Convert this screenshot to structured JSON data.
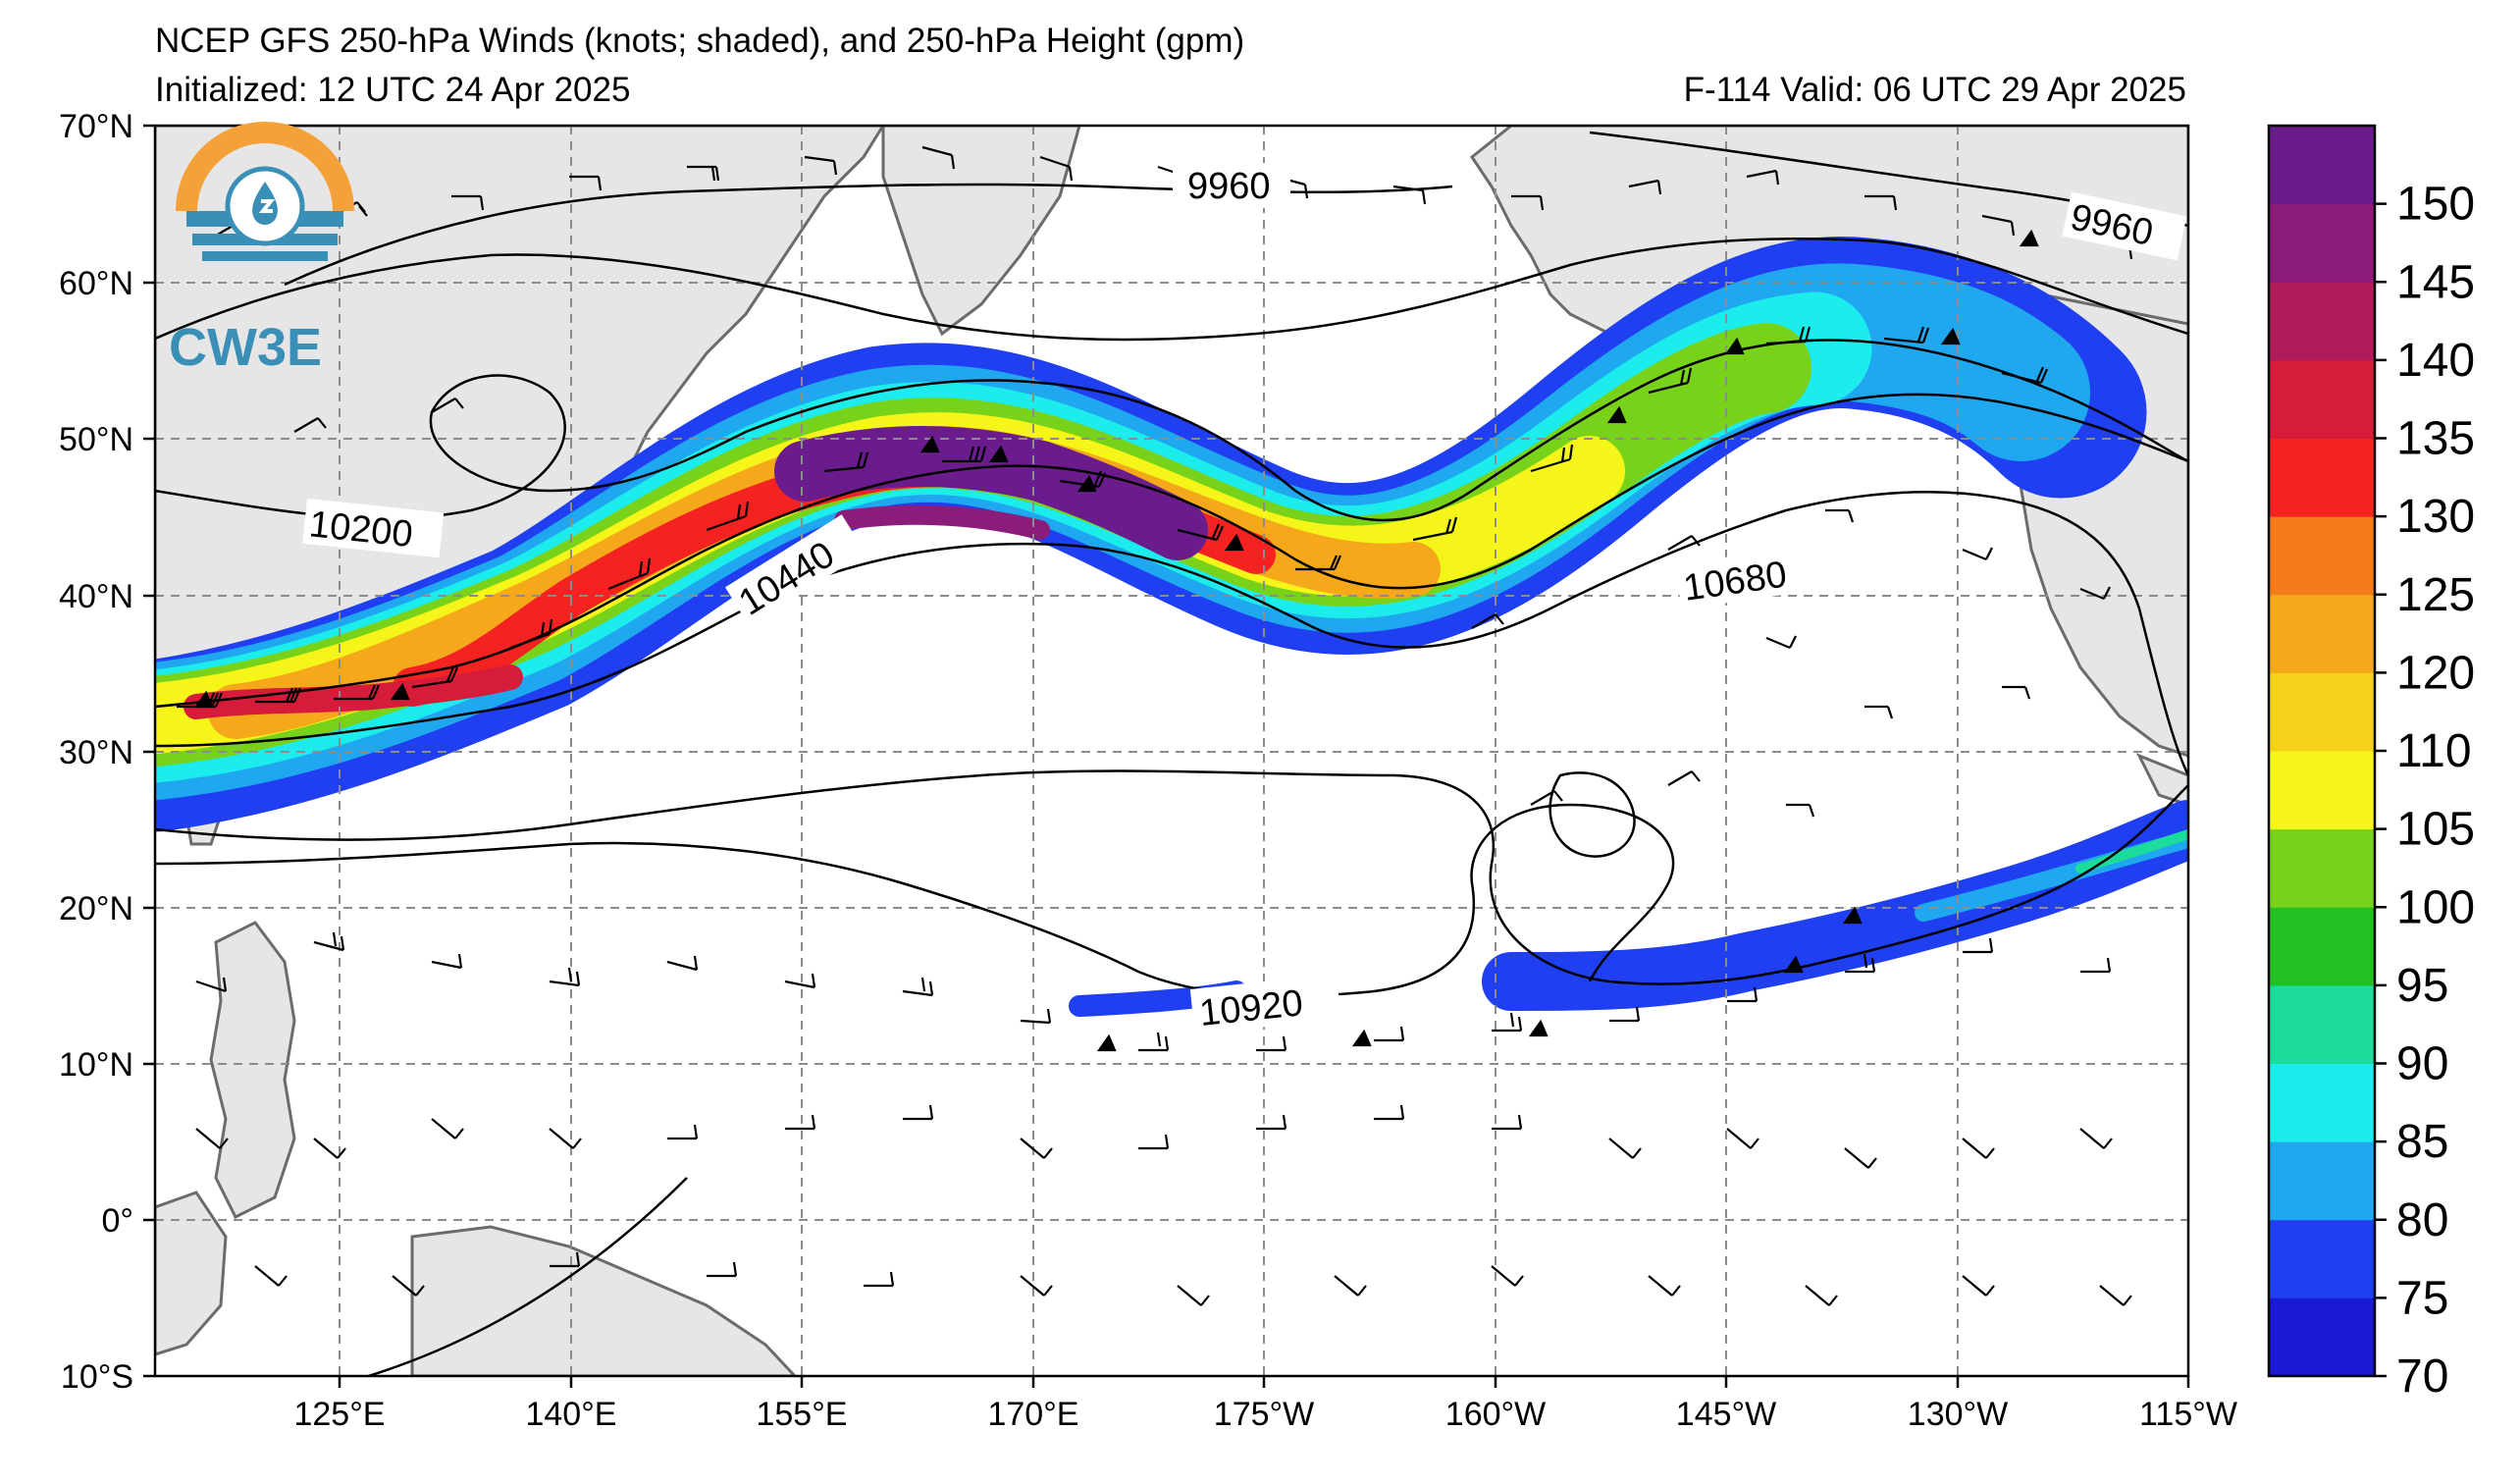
{
  "header": {
    "title": "NCEP GFS 250-hPa Winds (knots; shaded), and 250-hPa Height (gpm)",
    "initialized": "Initialized: 12 UTC 24 Apr 2025",
    "valid": "F-114  Valid: 06 UTC 29 Apr 2025"
  },
  "logo": {
    "text": "CW3E"
  },
  "map": {
    "lon_range": [
      113,
      245
    ],
    "lat_range": [
      -10,
      70
    ],
    "x_ticks": [
      {
        "lon": 125,
        "label": "125°E"
      },
      {
        "lon": 140,
        "label": "140°E"
      },
      {
        "lon": 155,
        "label": "155°E"
      },
      {
        "lon": 170,
        "label": "170°E"
      },
      {
        "lon": 185,
        "label": "175°W"
      },
      {
        "lon": 200,
        "label": "160°W"
      },
      {
        "lon": 215,
        "label": "145°W"
      },
      {
        "lon": 230,
        "label": "130°W"
      },
      {
        "lon": 245,
        "label": "115°W"
      }
    ],
    "y_ticks": [
      {
        "lat": 70,
        "label": "70°N"
      },
      {
        "lat": 60,
        "label": "60°N"
      },
      {
        "lat": 50,
        "label": "50°N"
      },
      {
        "lat": 40,
        "label": "40°N"
      },
      {
        "lat": 30,
        "label": "30°N"
      },
      {
        "lat": 20,
        "label": "20°N"
      },
      {
        "lat": 10,
        "label": "10°N"
      },
      {
        "lat": 0,
        "label": "0°"
      },
      {
        "lat": -10,
        "label": "10°S"
      }
    ],
    "grid": true,
    "contour_labels": [
      {
        "text": "9960",
        "lon": 180,
        "lat": 64
      },
      {
        "text": "9960",
        "lon": 239,
        "lat": 63
      },
      {
        "text": "10200",
        "lon": 127,
        "lat": 44
      },
      {
        "text": "10440",
        "lon": 155,
        "lat": 41
      },
      {
        "text": "10680",
        "lon": 209,
        "lat": 41
      },
      {
        "text": "10920",
        "lon": 182,
        "lat": 14
      }
    ]
  },
  "colorbar": {
    "levels": [
      70,
      75,
      80,
      85,
      90,
      95,
      100,
      105,
      110,
      120,
      125,
      130,
      135,
      140,
      145,
      150,
      155
    ],
    "labels": [
      "70",
      "75",
      "80",
      "85",
      "90",
      "95",
      "100",
      "105",
      "110",
      "120",
      "125",
      "130",
      "135",
      "140",
      "145",
      "150"
    ],
    "colors": [
      "#1a1ad4",
      "#1f3ff0",
      "#1fa8f0",
      "#1cecec",
      "#1cdc9c",
      "#22c022",
      "#78d21a",
      "#f5f51a",
      "#f5d21a",
      "#f5a81a",
      "#f57a1a",
      "#f52222",
      "#d61c3a",
      "#b01c5a",
      "#8c1c7a",
      "#6a1c8c"
    ]
  }
}
